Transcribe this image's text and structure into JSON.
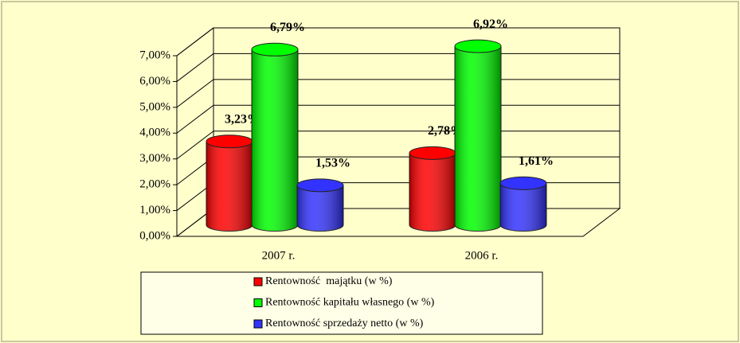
{
  "chart_data": {
    "type": "bar3d",
    "categories": [
      "2007 r.",
      "2006 r."
    ],
    "series": [
      {
        "name": "Rentowność  majątku (w %)",
        "color": "#ff0000",
        "values": [
          3.23,
          2.78
        ],
        "value_labels": [
          "3,23%",
          "2,78%"
        ]
      },
      {
        "name": "Rentowność kapitału własnego (w %)",
        "color": "#00ff00",
        "values": [
          6.79,
          6.92
        ],
        "value_labels": [
          "6,79%",
          "6,92%"
        ]
      },
      {
        "name": "Rentowność sprzedaży netto (w %)",
        "color": "#3333ff",
        "values": [
          1.53,
          1.61
        ],
        "value_labels": [
          "1,53%",
          "1,61%"
        ]
      }
    ],
    "ylim": [
      0,
      7
    ],
    "yticks": [
      {
        "value": 0,
        "label": "0,00%"
      },
      {
        "value": 1,
        "label": "1,00%"
      },
      {
        "value": 2,
        "label": "2,00%"
      },
      {
        "value": 3,
        "label": "3,00%"
      },
      {
        "value": 4,
        "label": "4,00%"
      },
      {
        "value": 5,
        "label": "5,00%"
      },
      {
        "value": 6,
        "label": "6,00%"
      },
      {
        "value": 7,
        "label": "7,00%"
      }
    ],
    "grid": true,
    "legend": "bottom"
  }
}
